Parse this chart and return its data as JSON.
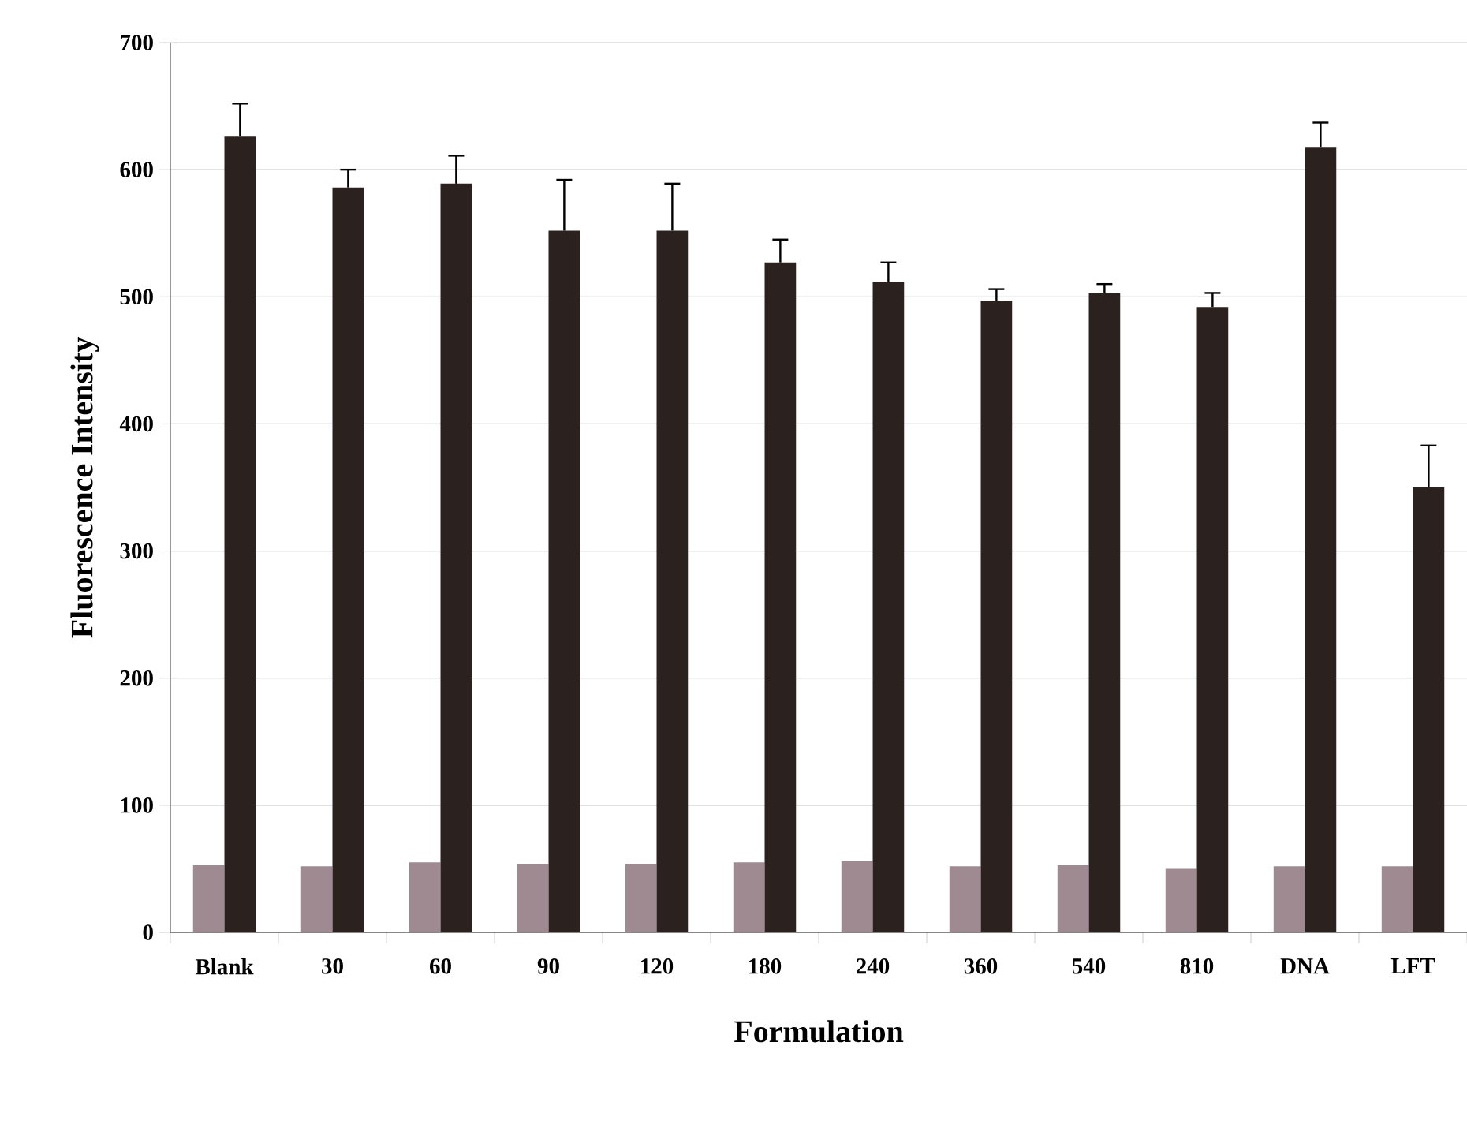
{
  "chart_data": {
    "type": "bar",
    "xlabel": "Formulation",
    "ylabel": "Fluorescence Intensity",
    "categories": [
      "Blank",
      "30",
      "60",
      "90",
      "120",
      "180",
      "240",
      "360",
      "540",
      "810",
      "DNA",
      "LFT"
    ],
    "series": [
      {
        "color": "#9e8a90",
        "values": [
          53,
          52,
          55,
          54,
          54,
          55,
          56,
          52,
          53,
          50,
          52,
          52
        ]
      },
      {
        "color": "#2b2220",
        "values": [
          626,
          586,
          589,
          552,
          552,
          527,
          512,
          497,
          503,
          492,
          618,
          350
        ],
        "errors": [
          26,
          14,
          22,
          40,
          37,
          18,
          15,
          9,
          7,
          11,
          19,
          33
        ]
      }
    ],
    "ylim": [
      0,
      700
    ],
    "yticks": [
      0,
      100,
      200,
      300,
      400,
      500,
      600,
      700
    ],
    "grid": "y"
  }
}
